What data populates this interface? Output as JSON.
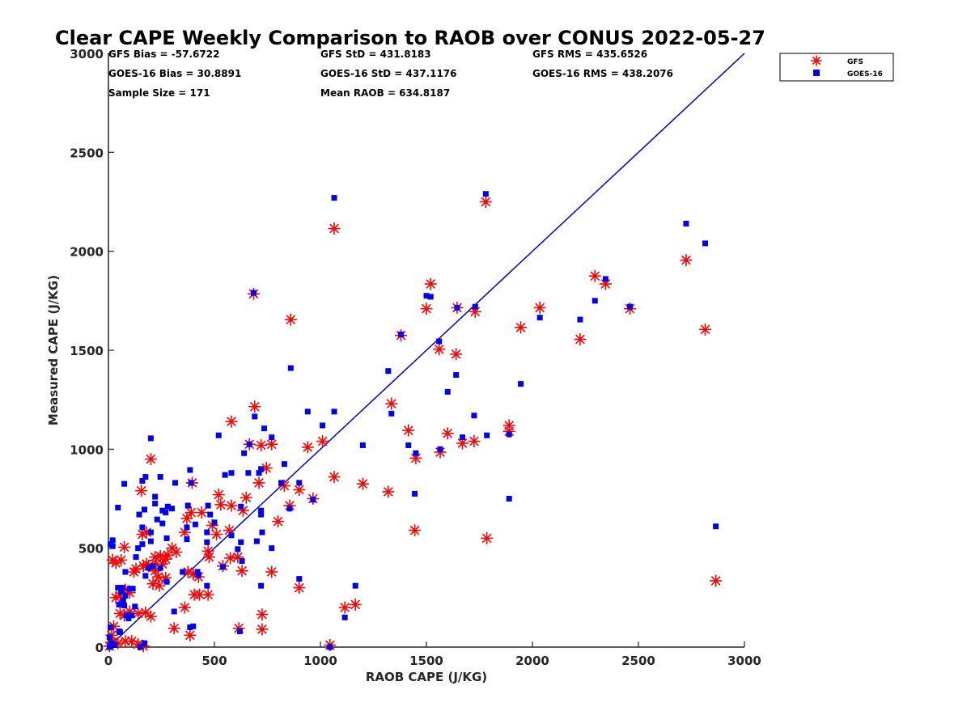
{
  "chart_data": {
    "type": "scatter",
    "title": "Clear CAPE Weekly Comparison to RAOB over CONUS 2022-05-27",
    "xlabel": "RAOB CAPE (J/KG)",
    "ylabel": "Measured CAPE (J/KG)",
    "xlim": [
      0,
      3000
    ],
    "ylim": [
      0,
      3000
    ],
    "xticks": [
      0,
      500,
      1000,
      1500,
      2000,
      2500,
      3000
    ],
    "yticks": [
      0,
      500,
      1000,
      1500,
      2000,
      2500,
      3000
    ],
    "xtick_labels": [
      "0",
      "500",
      "1000",
      "1500",
      "2000",
      "2500",
      "3000"
    ],
    "ytick_labels": [
      "0",
      "500",
      "1000",
      "1500",
      "2000",
      "2500",
      "3000"
    ],
    "grid": false,
    "legend_position": "top-right",
    "reference_line": {
      "from": [
        0,
        0
      ],
      "to": [
        3000,
        3000
      ],
      "color": "#0000cc"
    },
    "stats": [
      "GFS Bias = -57.6722",
      "GFS StD = 431.8183",
      "GFS RMS = 435.6526",
      "GOES-16 Bias = 30.8891",
      "GOES-16 StD = 437.1176",
      "GOES-16 RMS = 438.2076",
      "Sample Size = 171",
      "Mean RAOB = 634.8187"
    ],
    "series": [
      {
        "name": "GFS",
        "marker": "asterisk",
        "color": "#ff0000",
        "points": [
          [
            1780,
            2250
          ],
          [
            1065,
            2115
          ],
          [
            685,
            1785
          ],
          [
            1520,
            1835
          ],
          [
            1500,
            1710
          ],
          [
            860,
            1655
          ],
          [
            1645,
            1715
          ],
          [
            1730,
            1695
          ],
          [
            2035,
            1715
          ],
          [
            2295,
            1875
          ],
          [
            2345,
            1835
          ],
          [
            2460,
            1710
          ],
          [
            2725,
            1955
          ],
          [
            2815,
            1605
          ],
          [
            1945,
            1615
          ],
          [
            2225,
            1555
          ],
          [
            1380,
            1575
          ],
          [
            1560,
            1505
          ],
          [
            1640,
            1480
          ],
          [
            1335,
            1230
          ],
          [
            1415,
            1095
          ],
          [
            1450,
            955
          ],
          [
            1565,
            985
          ],
          [
            1600,
            1080
          ],
          [
            1670,
            1030
          ],
          [
            1725,
            1040
          ],
          [
            1890,
            1120
          ],
          [
            1890,
            1090
          ],
          [
            1785,
            550
          ],
          [
            1445,
            590
          ],
          [
            1320,
            785
          ],
          [
            1200,
            825
          ],
          [
            1065,
            860
          ],
          [
            1010,
            1040
          ],
          [
            940,
            1010
          ],
          [
            690,
            1215
          ],
          [
            580,
            1140
          ],
          [
            665,
            1025
          ],
          [
            720,
            1020
          ],
          [
            770,
            1025
          ],
          [
            745,
            905
          ],
          [
            710,
            830
          ],
          [
            830,
            815
          ],
          [
            900,
            795
          ],
          [
            965,
            750
          ],
          [
            855,
            715
          ],
          [
            800,
            635
          ],
          [
            770,
            380
          ],
          [
            900,
            300
          ],
          [
            725,
            165
          ],
          [
            725,
            90
          ],
          [
            615,
            95
          ],
          [
            1115,
            200
          ],
          [
            1165,
            215
          ],
          [
            1045,
            10
          ],
          [
            2865,
            335
          ],
          [
            520,
            770
          ],
          [
            530,
            720
          ],
          [
            580,
            715
          ],
          [
            650,
            755
          ],
          [
            635,
            690
          ],
          [
            610,
            455
          ],
          [
            575,
            450
          ],
          [
            630,
            385
          ],
          [
            540,
            410
          ],
          [
            570,
            590
          ],
          [
            510,
            570
          ],
          [
            490,
            615
          ],
          [
            470,
            485
          ],
          [
            475,
            455
          ],
          [
            440,
            680
          ],
          [
            395,
            830
          ],
          [
            390,
            680
          ],
          [
            370,
            650
          ],
          [
            360,
            580
          ],
          [
            375,
            380
          ],
          [
            400,
            370
          ],
          [
            425,
            355
          ],
          [
            405,
            265
          ],
          [
            430,
            265
          ],
          [
            470,
            265
          ],
          [
            360,
            200
          ],
          [
            385,
            60
          ],
          [
            310,
            95
          ],
          [
            300,
            500
          ],
          [
            320,
            480
          ],
          [
            280,
            465
          ],
          [
            270,
            445
          ],
          [
            255,
            420
          ],
          [
            245,
            460
          ],
          [
            220,
            455
          ],
          [
            225,
            420
          ],
          [
            220,
            385
          ],
          [
            235,
            355
          ],
          [
            210,
            320
          ],
          [
            240,
            310
          ],
          [
            270,
            350
          ],
          [
            190,
            410
          ],
          [
            180,
            420
          ],
          [
            165,
            410
          ],
          [
            160,
            570
          ],
          [
            180,
            580
          ],
          [
            155,
            790
          ],
          [
            200,
            950
          ],
          [
            130,
            395
          ],
          [
            120,
            380
          ],
          [
            100,
            275
          ],
          [
            75,
            505
          ],
          [
            60,
            440
          ],
          [
            20,
            440
          ],
          [
            35,
            425
          ],
          [
            80,
            290
          ],
          [
            55,
            260
          ],
          [
            35,
            250
          ],
          [
            55,
            170
          ],
          [
            75,
            160
          ],
          [
            100,
            180
          ],
          [
            140,
            170
          ],
          [
            175,
            175
          ],
          [
            200,
            155
          ],
          [
            25,
            105
          ],
          [
            15,
            60
          ],
          [
            20,
            25
          ],
          [
            45,
            20
          ],
          [
            80,
            30
          ],
          [
            110,
            30
          ],
          [
            140,
            15
          ],
          [
            165,
            5
          ],
          [
            5,
            5
          ]
        ]
      },
      {
        "name": "GOES-16",
        "marker": "square",
        "color": "#0000ee",
        "points": [
          [
            1780,
            2290
          ],
          [
            1065,
            2270
          ],
          [
            2725,
            2140
          ],
          [
            2815,
            2040
          ],
          [
            685,
            1790
          ],
          [
            1500,
            1775
          ],
          [
            1520,
            1770
          ],
          [
            2345,
            1860
          ],
          [
            2295,
            1750
          ],
          [
            2460,
            1720
          ],
          [
            2035,
            1665
          ],
          [
            2225,
            1655
          ],
          [
            1645,
            1715
          ],
          [
            1730,
            1720
          ],
          [
            1380,
            1580
          ],
          [
            1560,
            1545
          ],
          [
            860,
            1410
          ],
          [
            1320,
            1395
          ],
          [
            1640,
            1375
          ],
          [
            1945,
            1330
          ],
          [
            1600,
            1290
          ],
          [
            1335,
            1180
          ],
          [
            1065,
            1190
          ],
          [
            940,
            1190
          ],
          [
            690,
            1165
          ],
          [
            1010,
            1120
          ],
          [
            735,
            1105
          ],
          [
            770,
            1060
          ],
          [
            1725,
            1170
          ],
          [
            1200,
            1020
          ],
          [
            1415,
            1020
          ],
          [
            1565,
            1000
          ],
          [
            1450,
            980
          ],
          [
            1670,
            1060
          ],
          [
            1785,
            1070
          ],
          [
            1890,
            1075
          ],
          [
            665,
            1025
          ],
          [
            520,
            1070
          ],
          [
            200,
            1055
          ],
          [
            580,
            880
          ],
          [
            640,
            980
          ],
          [
            720,
            900
          ],
          [
            710,
            880
          ],
          [
            660,
            880
          ],
          [
            830,
            925
          ],
          [
            815,
            830
          ],
          [
            900,
            830
          ],
          [
            965,
            745
          ],
          [
            1445,
            775
          ],
          [
            1890,
            750
          ],
          [
            2865,
            610
          ],
          [
            855,
            700
          ],
          [
            720,
            690
          ],
          [
            720,
            670
          ],
          [
            700,
            535
          ],
          [
            725,
            580
          ],
          [
            770,
            500
          ],
          [
            900,
            345
          ],
          [
            720,
            310
          ],
          [
            1165,
            310
          ],
          [
            1115,
            150
          ],
          [
            1045,
            0
          ],
          [
            620,
            80
          ],
          [
            625,
            530
          ],
          [
            630,
            435
          ],
          [
            610,
            495
          ],
          [
            625,
            710
          ],
          [
            550,
            870
          ],
          [
            580,
            565
          ],
          [
            540,
            405
          ],
          [
            500,
            630
          ],
          [
            470,
            715
          ],
          [
            480,
            670
          ],
          [
            465,
            580
          ],
          [
            465,
            530
          ],
          [
            465,
            310
          ],
          [
            420,
            380
          ],
          [
            410,
            620
          ],
          [
            425,
            365
          ],
          [
            385,
            895
          ],
          [
            390,
            830
          ],
          [
            375,
            715
          ],
          [
            370,
            605
          ],
          [
            370,
            545
          ],
          [
            350,
            380
          ],
          [
            385,
            100
          ],
          [
            400,
            105
          ],
          [
            310,
            180
          ],
          [
            315,
            830
          ],
          [
            300,
            700
          ],
          [
            280,
            710
          ],
          [
            270,
            680
          ],
          [
            255,
            625
          ],
          [
            245,
            860
          ],
          [
            255,
            690
          ],
          [
            275,
            550
          ],
          [
            275,
            330
          ],
          [
            245,
            400
          ],
          [
            220,
            760
          ],
          [
            220,
            725
          ],
          [
            230,
            645
          ],
          [
            210,
            410
          ],
          [
            200,
            535
          ],
          [
            200,
            580
          ],
          [
            190,
            400
          ],
          [
            175,
            360
          ],
          [
            160,
            840
          ],
          [
            175,
            860
          ],
          [
            160,
            605
          ],
          [
            160,
            520
          ],
          [
            170,
            695
          ],
          [
            145,
            670
          ],
          [
            140,
            500
          ],
          [
            130,
            455
          ],
          [
            125,
            205
          ],
          [
            115,
            295
          ],
          [
            100,
            295
          ],
          [
            75,
            825
          ],
          [
            45,
            705
          ],
          [
            80,
            380
          ],
          [
            65,
            300
          ],
          [
            60,
            280
          ],
          [
            45,
            300
          ],
          [
            50,
            215
          ],
          [
            75,
            210
          ],
          [
            80,
            260
          ],
          [
            85,
            160
          ],
          [
            95,
            145
          ],
          [
            110,
            160
          ],
          [
            70,
            235
          ],
          [
            50,
            80
          ],
          [
            55,
            75
          ],
          [
            10,
            520
          ],
          [
            20,
            540
          ],
          [
            20,
            510
          ],
          [
            10,
            100
          ],
          [
            5,
            50
          ],
          [
            15,
            20
          ],
          [
            30,
            10
          ],
          [
            10,
            5
          ],
          [
            5,
            0
          ],
          [
            150,
            0
          ],
          [
            170,
            20
          ]
        ]
      }
    ]
  }
}
